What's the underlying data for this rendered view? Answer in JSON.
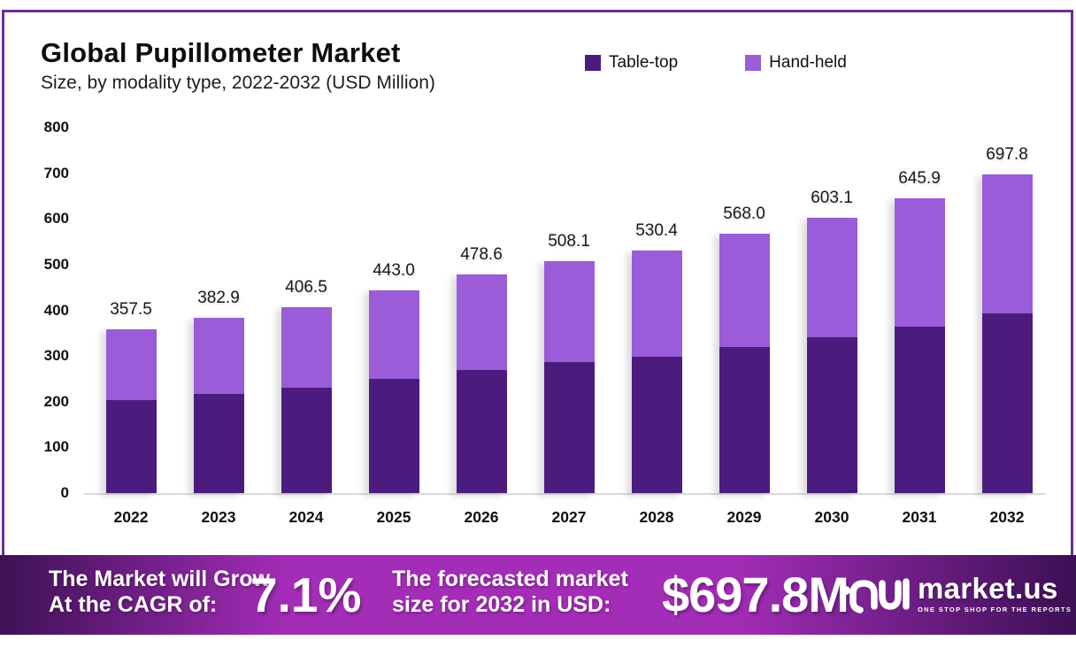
{
  "header": {
    "title": "Global Pupillometer Market",
    "subtitle": "Size, by modality type, 2022-2032 (USD Million)"
  },
  "colors": {
    "table_top": "#4b1c7e",
    "hand_held": "#9a5cd8",
    "frame_border": "#6c2d96",
    "axis_line": "#d9d9d9"
  },
  "chart_data": {
    "type": "bar",
    "stacked": true,
    "title": "Global Pupillometer Market Size, by modality type, 2022-2032 (USD Million)",
    "categories": [
      "2022",
      "2023",
      "2024",
      "2025",
      "2026",
      "2027",
      "2028",
      "2029",
      "2030",
      "2031",
      "2032"
    ],
    "series": [
      {
        "name": "Table-top",
        "color": "#4b1c7e",
        "values": [
          202.9,
          216.5,
          230.8,
          250.5,
          270.2,
          287.6,
          299.0,
          320.1,
          340.0,
          364.7,
          393.4
        ]
      },
      {
        "name": "Hand-held",
        "color": "#9a5cd8",
        "values": [
          154.6,
          166.4,
          175.7,
          192.5,
          208.4,
          220.5,
          231.4,
          247.9,
          263.1,
          281.2,
          304.4
        ]
      }
    ],
    "totals": [
      357.5,
      382.9,
      406.5,
      443.0,
      478.6,
      508.1,
      530.4,
      568.0,
      603.1,
      645.9,
      697.8
    ],
    "total_labels": [
      "357.5",
      "382.9",
      "406.5",
      "443.0",
      "478.6",
      "508.1",
      "530.4",
      "568.0",
      "603.1",
      "645.9",
      "697.8"
    ],
    "xlabel": "",
    "ylabel": "",
    "ylim": [
      0,
      800
    ],
    "ytick_step": 100,
    "grid": false,
    "legend_position": "top-right"
  },
  "footer": {
    "growth_label_line1": "The Market will Grow",
    "growth_label_line2": "At the CAGR of:",
    "cagr_value": "7.1%",
    "forecast_label_line1": "The forecasted market",
    "forecast_label_line2": "size for 2032 in USD:",
    "forecast_value": "$697.8M",
    "brand": {
      "name": "market.us",
      "tagline": "ONE STOP SHOP FOR THE REPORTS"
    },
    "gradient": [
      "#3e1156",
      "#a42db8",
      "#3c1055"
    ]
  }
}
